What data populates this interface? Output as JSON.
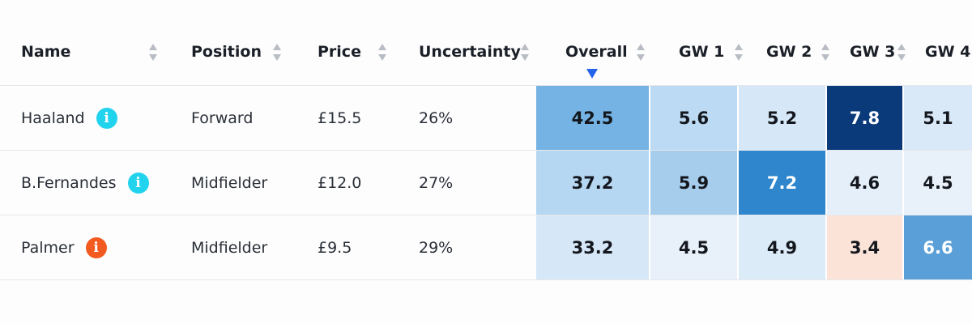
{
  "headers": {
    "name": "Name",
    "position": "Position",
    "price": "Price",
    "uncertainty": "Uncertainty",
    "overall": "Overall",
    "gw1": "GW 1",
    "gw2": "GW 2",
    "gw3": "GW 3",
    "gw4": "GW 4"
  },
  "sort": {
    "active_column": "overall",
    "direction": "descending"
  },
  "rows": [
    {
      "name": "Haaland",
      "info_icon": "info-icon",
      "info_color": "#22d3ee",
      "position": "Forward",
      "price": "£15.5",
      "uncertainty": "26%",
      "overall": "42.5",
      "gw1": "5.6",
      "gw2": "5.2",
      "gw3": "7.8",
      "gw4": "5.1",
      "colors": {
        "overall": "#74b3e3",
        "gw1": "#bcdaf3",
        "gw2": "#d6e8f7",
        "gw3": "#0a3a7a",
        "gw4": "#d9e9f7"
      },
      "text_colors": {
        "overall": "#14171d",
        "gw1": "#14171d",
        "gw2": "#14171d",
        "gw3": "#ffffff",
        "gw4": "#14171d"
      }
    },
    {
      "name": "B.Fernandes",
      "info_icon": "info-icon",
      "info_color": "#22d3ee",
      "position": "Midfielder",
      "price": "£12.0",
      "uncertainty": "27%",
      "overall": "37.2",
      "gw1": "5.9",
      "gw2": "7.2",
      "gw3": "4.6",
      "gw4": "4.5",
      "colors": {
        "overall": "#b6d7f2",
        "gw1": "#a7cdec",
        "gw2": "#2f86cc",
        "gw3": "#e4eff9",
        "gw4": "#e8f1fa"
      },
      "text_colors": {
        "overall": "#14171d",
        "gw1": "#14171d",
        "gw2": "#ffffff",
        "gw3": "#14171d",
        "gw4": "#14171d"
      }
    },
    {
      "name": "Palmer",
      "info_icon": "info-icon",
      "info_color": "#f25a1f",
      "position": "Midfielder",
      "price": "£9.5",
      "uncertainty": "29%",
      "overall": "33.2",
      "gw1": "4.5",
      "gw2": "4.9",
      "gw3": "3.4",
      "gw4": "6.6",
      "colors": {
        "overall": "#d6e8f7",
        "gw1": "#e8f1fa",
        "gw2": "#dcebf8",
        "gw3": "#fbe3d8",
        "gw4": "#5a9fd8"
      },
      "text_colors": {
        "overall": "#14171d",
        "gw1": "#14171d",
        "gw2": "#14171d",
        "gw3": "#14171d",
        "gw4": "#ffffff"
      }
    }
  ]
}
